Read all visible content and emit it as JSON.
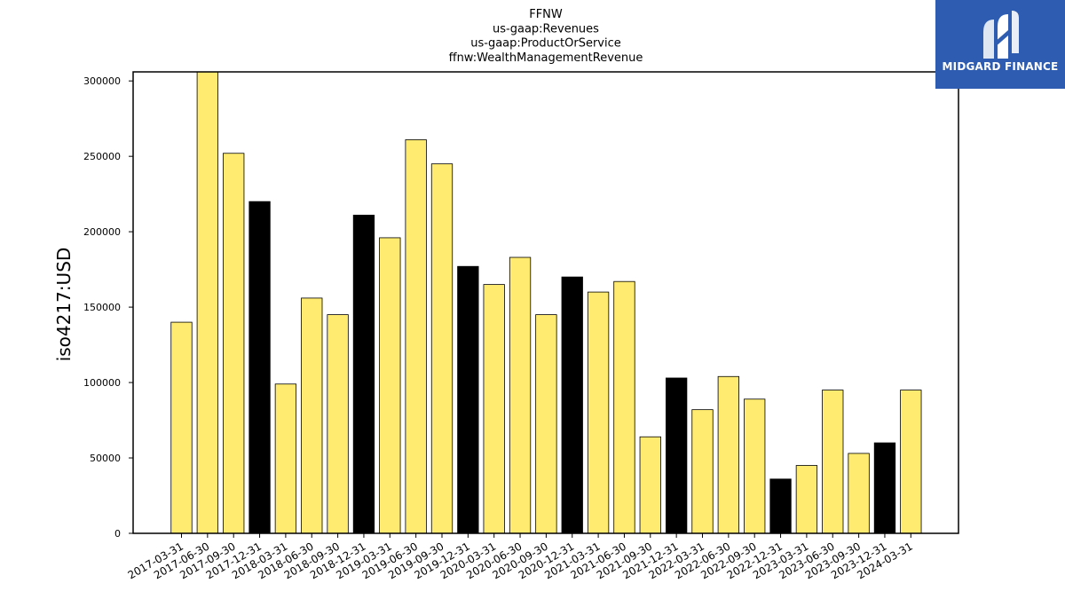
{
  "chart_data": {
    "type": "bar",
    "title_lines": [
      "FFNW",
      "us-gaap:Revenues",
      "us-gaap:ProductOrService",
      "ffnw:WealthManagementRevenue"
    ],
    "xlabel": "",
    "ylabel": "iso4217:USD",
    "ylim": [
      0,
      306000
    ],
    "yticks": [
      0,
      50000,
      100000,
      150000,
      200000,
      250000,
      300000
    ],
    "grid": false,
    "categories": [
      "2017-03-31",
      "2017-06-30",
      "2017-09-30",
      "2017-12-31",
      "2018-03-31",
      "2018-06-30",
      "2018-09-30",
      "2018-12-31",
      "2019-03-31",
      "2019-06-30",
      "2019-09-30",
      "2019-12-31",
      "2020-03-31",
      "2020-06-30",
      "2020-09-30",
      "2020-12-31",
      "2021-03-31",
      "2021-06-30",
      "2021-09-30",
      "2021-12-31",
      "2022-03-31",
      "2022-06-30",
      "2022-09-30",
      "2022-12-31",
      "2023-03-31",
      "2023-06-30",
      "2023-09-30",
      "2023-12-31",
      "2024-03-31"
    ],
    "values": [
      140000,
      306000,
      252000,
      220000,
      99000,
      156000,
      145000,
      211000,
      196000,
      261000,
      245000,
      177000,
      165000,
      183000,
      145000,
      170000,
      160000,
      167000,
      64000,
      103000,
      82000,
      104000,
      89000,
      36000,
      45000,
      95000,
      53000,
      60000,
      95000
    ],
    "bar_colors": [
      "#ffeb70",
      "#ffeb70",
      "#ffeb70",
      "#000000",
      "#ffeb70",
      "#ffeb70",
      "#ffeb70",
      "#000000",
      "#ffeb70",
      "#ffeb70",
      "#ffeb70",
      "#000000",
      "#ffeb70",
      "#ffeb70",
      "#ffeb70",
      "#000000",
      "#ffeb70",
      "#ffeb70",
      "#ffeb70",
      "#000000",
      "#ffeb70",
      "#ffeb70",
      "#ffeb70",
      "#000000",
      "#ffeb70",
      "#ffeb70",
      "#ffeb70",
      "#000000",
      "#ffeb70"
    ],
    "colors": {
      "annual": "#000000",
      "quarterly": "#ffeb70",
      "edge": "#000000"
    }
  },
  "logo": {
    "text": "MIDGARD FINANCE",
    "background": "#2d5cb0",
    "icon": "midgard-logo-mark"
  }
}
